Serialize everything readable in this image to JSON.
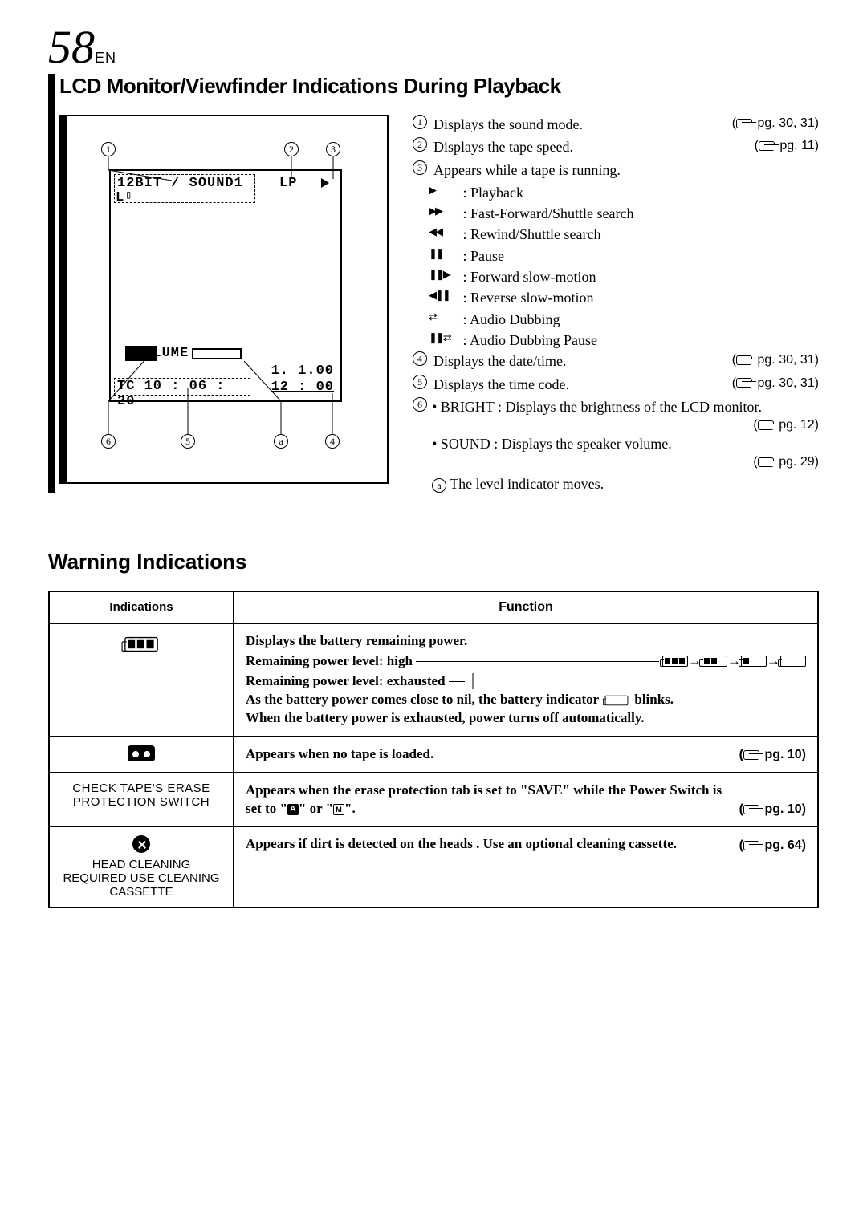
{
  "page_number": "58",
  "page_lang": "EN",
  "section1_title": "LCD Monitor/Viewfinder Indications During Playback",
  "lcd": {
    "sound_mode": "12BIT / SOUND1",
    "tape_speed": "LP",
    "sound_row2_prefix": "L",
    "volume_label": "VOLUME",
    "date": "1. 1.00",
    "timecode_label": "TC 10 : 06 : 20",
    "time": "12 : 00"
  },
  "callouts": {
    "c1": {
      "n": "1",
      "text": "Displays the sound mode.",
      "ref": "pg. 30, 31"
    },
    "c2": {
      "n": "2",
      "text": "Displays the tape speed.",
      "ref": "pg. 11"
    },
    "c3": {
      "n": "3",
      "text": "Appears while a tape is running.",
      "items": [
        {
          "sym": "▶",
          "label": ": Playback"
        },
        {
          "sym": "▶▶",
          "label": ": Fast-Forward/Shuttle search"
        },
        {
          "sym": "◀◀",
          "label": ": Rewind/Shuttle search"
        },
        {
          "sym": "❚❚",
          "label": ": Pause"
        },
        {
          "sym": "❚❚▶",
          "label": ": Forward slow-motion"
        },
        {
          "sym": "◀❚❚",
          "label": ": Reverse slow-motion"
        },
        {
          "sym": "⇄",
          "label": ": Audio Dubbing"
        },
        {
          "sym": "❚❚⇄",
          "label": ": Audio Dubbing Pause"
        }
      ]
    },
    "c4": {
      "n": "4",
      "text": "Displays the date/time.",
      "ref": "pg. 30, 31"
    },
    "c5": {
      "n": "5",
      "text": "Displays the time code.",
      "ref": "pg. 30, 31"
    },
    "c6": {
      "n": "6",
      "bright": "• BRIGHT : Displays the brightness of the LCD monitor.",
      "bright_ref": "pg. 12",
      "sound": "• SOUND : Displays the speaker volume.",
      "sound_ref": "pg. 29",
      "a_label": "a",
      "a_text": "The level indicator moves."
    }
  },
  "section2_title": "Warning Indications",
  "table": {
    "h1": "Indications",
    "h2": "Function",
    "r1": {
      "l1": "Displays the battery remaining power.",
      "l2": "Remaining power level: high",
      "l3": "Remaining power level: exhausted",
      "l4": "As the battery power comes close to nil, the battery indicator",
      "l4b": " blinks.",
      "l5": "When the battery power is exhausted, power turns off automatically."
    },
    "r2": {
      "text": "Appears when no tape is loaded.",
      "ref": "pg. 10"
    },
    "r3": {
      "ind": "CHECK TAPE'S ERASE PROTECTION SWITCH",
      "text": "Appears when the erase protection tab is set to \"SAVE\" while the Power Switch is set to \"",
      "text2": "\" or \"",
      "text3": "\".",
      "ref": "pg. 10"
    },
    "r4": {
      "ind": "HEAD CLEANING REQUIRED USE CLEANING CASSETTE",
      "text": "Appears if dirt is detected on the heads . Use an optional cleaning cassette.",
      "ref": "pg. 64"
    }
  }
}
